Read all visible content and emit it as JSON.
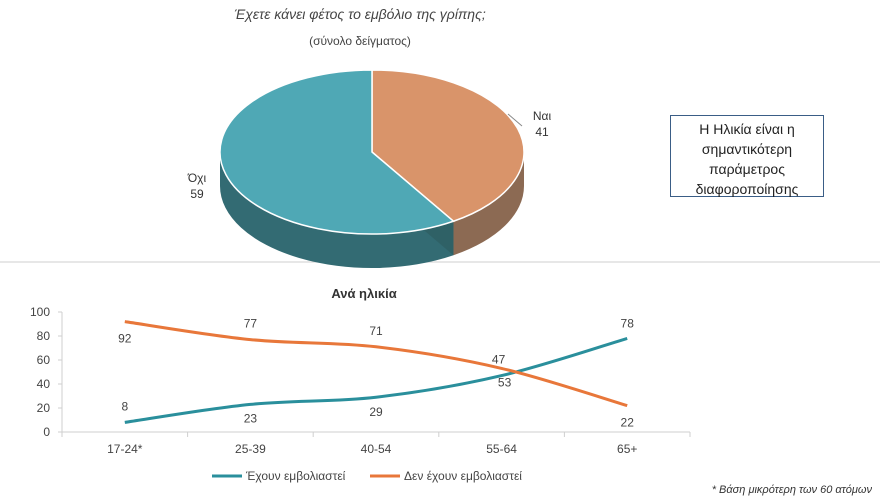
{
  "chart_data": [
    {
      "type": "pie",
      "title": "Έχετε κάνει φέτος το εμβόλιο της γρίπης;",
      "subtitle": "(σύνολο δείγματος)",
      "slices": [
        {
          "label": "Ναι",
          "value": 41,
          "color": "#d9946a",
          "side": "#8c6a53"
        },
        {
          "label": "Όχι",
          "value": 59,
          "color": "#4fa8b5",
          "side": "#336b73"
        }
      ]
    },
    {
      "type": "line",
      "title": "Ανά ηλικία",
      "categories": [
        "17-24*",
        "25-39",
        "40-54",
        "55-64",
        "65+"
      ],
      "ylim": [
        0,
        100
      ],
      "yticks": [
        "0",
        "20",
        "40",
        "60",
        "80",
        "100"
      ],
      "series": [
        {
          "name": "Έχουν εμβολιαστεί",
          "values": [
            8,
            23,
            29,
            47,
            78
          ],
          "color": "#2a8f9c"
        },
        {
          "name": "Δεν έχουν εμβολιαστεί",
          "values": [
            92,
            77,
            71,
            53,
            22
          ],
          "color": "#e8773a"
        }
      ],
      "legend_position": "bottom"
    }
  ],
  "note": "Η Ηλικία είναι η σημαντικότερη παράμετρος διαφοροποίησης",
  "footnote": "* Βάση μικρότερη των 60 ατόμων",
  "colors": {
    "axis": "#cfcfcf",
    "text": "#444444"
  }
}
